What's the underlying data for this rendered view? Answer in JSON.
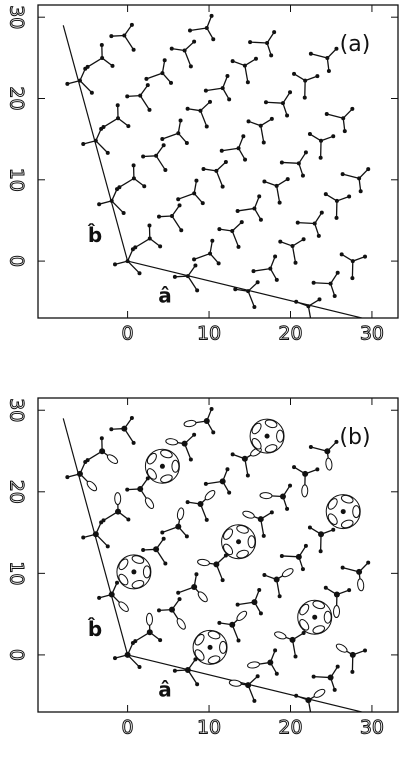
{
  "panels": [
    {
      "label": "(a)",
      "a_label": "â",
      "b_label": "b̂",
      "xlim": [
        -11,
        33.2
      ],
      "ylim": [
        -7,
        31.5
      ],
      "xticks": [
        0,
        10,
        20,
        30
      ],
      "yticks": [
        0,
        10,
        20,
        30
      ]
    },
    {
      "label": "(b)",
      "a_label": "â",
      "b_label": "b̂",
      "xlim": [
        -11,
        33.2
      ],
      "ylim": [
        -7,
        31.5
      ],
      "xticks": [
        0,
        10,
        20,
        30
      ],
      "yticks": [
        0,
        10,
        20,
        30
      ]
    }
  ]
}
